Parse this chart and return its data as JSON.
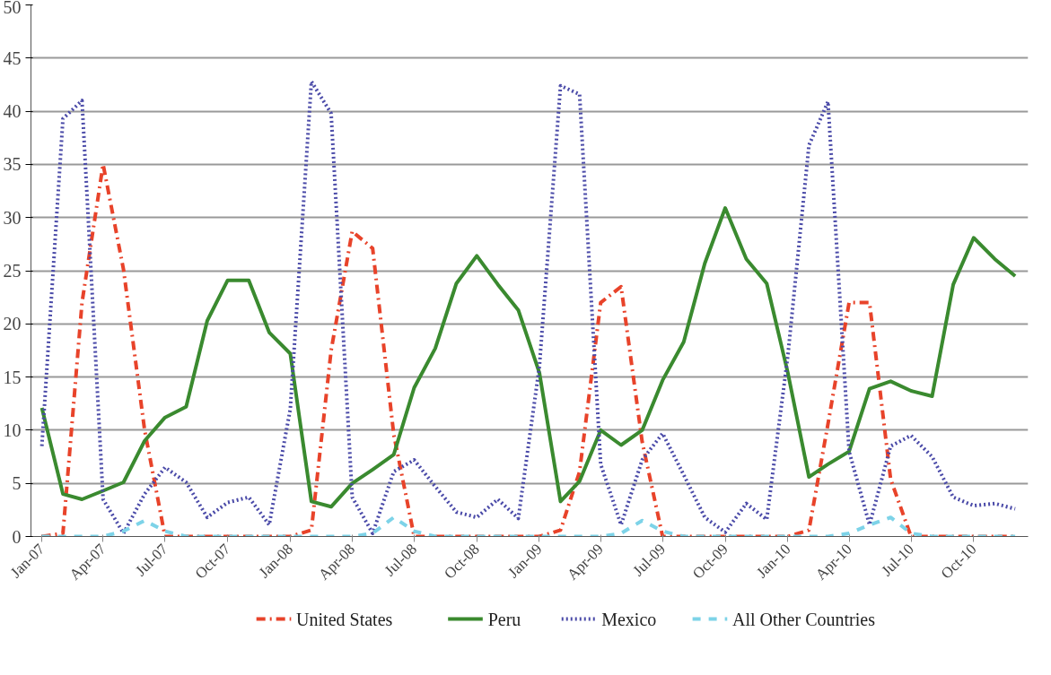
{
  "chart_data": {
    "type": "line",
    "x": [
      "2007-01",
      "2007-02",
      "2007-03",
      "2007-04",
      "2007-05",
      "2007-06",
      "2007-07",
      "2007-08",
      "2007-09",
      "2007-10",
      "2007-11",
      "2007-12",
      "2008-01",
      "2008-02",
      "2008-03",
      "2008-04",
      "2008-05",
      "2008-06",
      "2008-07",
      "2008-08",
      "2008-09",
      "2008-10",
      "2008-11",
      "2008-12",
      "2009-01",
      "2009-02",
      "2009-03",
      "2009-04",
      "2009-05",
      "2009-06",
      "2009-07",
      "2009-08",
      "2009-09",
      "2009-10",
      "2009-11",
      "2009-12",
      "2010-01",
      "2010-02",
      "2010-03",
      "2010-04",
      "2010-05",
      "2010-06",
      "2010-07",
      "2010-08",
      "2010-09",
      "2010-10",
      "2010-11",
      "2010-12"
    ],
    "series": [
      {
        "name": "United States",
        "color": "#e8432a",
        "line_style": "dashdot",
        "values": [
          0,
          0.3,
          22,
          35,
          25.1,
          10,
          0,
          0,
          0,
          0,
          0,
          0,
          0,
          0.6,
          17.5,
          28.7,
          27.1,
          9.6,
          0,
          0,
          0,
          0,
          0,
          0,
          0,
          0.6,
          6.1,
          22,
          23.5,
          8.9,
          0,
          0,
          0,
          0,
          0,
          0,
          0,
          0.6,
          10.6,
          22,
          22,
          5.4,
          0,
          0,
          0,
          0,
          0,
          0
        ]
      },
      {
        "name": "Peru",
        "color": "#3a8a2f",
        "line_style": "solid",
        "values": [
          12.1,
          4,
          3.5,
          4.3,
          5.1,
          9,
          11.2,
          12.2,
          20.3,
          24.1,
          24.1,
          19.2,
          17.2,
          3.3,
          2.8,
          5,
          6.3,
          7.7,
          14,
          17.7,
          23.8,
          26.4,
          23.7,
          21.3,
          15.4,
          3.3,
          5.2,
          10,
          8.6,
          10,
          14.7,
          18.3,
          25.7,
          30.9,
          26.1,
          23.8,
          15.4,
          5.6,
          6.8,
          8,
          13.9,
          14.6,
          13.7,
          13.2,
          23.7,
          28.1,
          26.1,
          24.5
        ]
      },
      {
        "name": "Mexico",
        "color": "#4a4aa8",
        "line_style": "dotted",
        "values": [
          8.5,
          39.3,
          41,
          3.5,
          0.3,
          4,
          6.5,
          5.1,
          1.8,
          3.2,
          3.7,
          1.1,
          12,
          42.8,
          39.8,
          3.7,
          0.3,
          6.1,
          7.2,
          4.7,
          2.3,
          1.8,
          3.5,
          1.7,
          16,
          42.4,
          41.6,
          6.8,
          1.1,
          7.2,
          9.7,
          5.8,
          1.8,
          0.4,
          3.1,
          1.6,
          17,
          36.8,
          40.9,
          8,
          1.1,
          8.5,
          9.5,
          7.5,
          3.7,
          2.9,
          3.1,
          2.6
        ]
      },
      {
        "name": "All Other Countries",
        "color": "#7dd3e8",
        "line_style": "dashed",
        "values": [
          0,
          0,
          0,
          0,
          0.5,
          1.5,
          0.5,
          0,
          0,
          0,
          0,
          0,
          0,
          0,
          0,
          0,
          0.3,
          1.8,
          0.5,
          0,
          0,
          0,
          0,
          0,
          0,
          0,
          0,
          0,
          0.3,
          1.5,
          0.5,
          0,
          0,
          0,
          0,
          0,
          0,
          0,
          0,
          0.3,
          1.1,
          1.8,
          0.3,
          0,
          0,
          0,
          0,
          0
        ]
      }
    ],
    "xlim": [
      "2006-12-16",
      "2010-12-20"
    ],
    "xticks": [
      {
        "value": "2007-01",
        "label": "Jan-07"
      },
      {
        "value": "2007-04",
        "label": "Apr-07"
      },
      {
        "value": "2007-07",
        "label": "Jul-07"
      },
      {
        "value": "2007-10",
        "label": "Oct-07"
      },
      {
        "value": "2008-01",
        "label": "Jan-08"
      },
      {
        "value": "2008-04",
        "label": "Apr-08"
      },
      {
        "value": "2008-07",
        "label": "Jul-08"
      },
      {
        "value": "2008-10",
        "label": "Oct-08"
      },
      {
        "value": "2009-01",
        "label": "Jan-09"
      },
      {
        "value": "2009-04",
        "label": "Apr-09"
      },
      {
        "value": "2009-07",
        "label": "Jul-09"
      },
      {
        "value": "2009-10",
        "label": "Oct-09"
      },
      {
        "value": "2010-01",
        "label": "Jan-10"
      },
      {
        "value": "2010-04",
        "label": "Apr-10"
      },
      {
        "value": "2010-07",
        "label": "Jul-10"
      },
      {
        "value": "2010-10",
        "label": "Oct-10"
      }
    ],
    "ylim": [
      0,
      50
    ],
    "yticks": [
      0,
      5,
      10,
      15,
      20,
      25,
      30,
      35,
      40,
      45,
      50
    ],
    "grid": "y",
    "legend": "bottom",
    "marker": "none"
  }
}
